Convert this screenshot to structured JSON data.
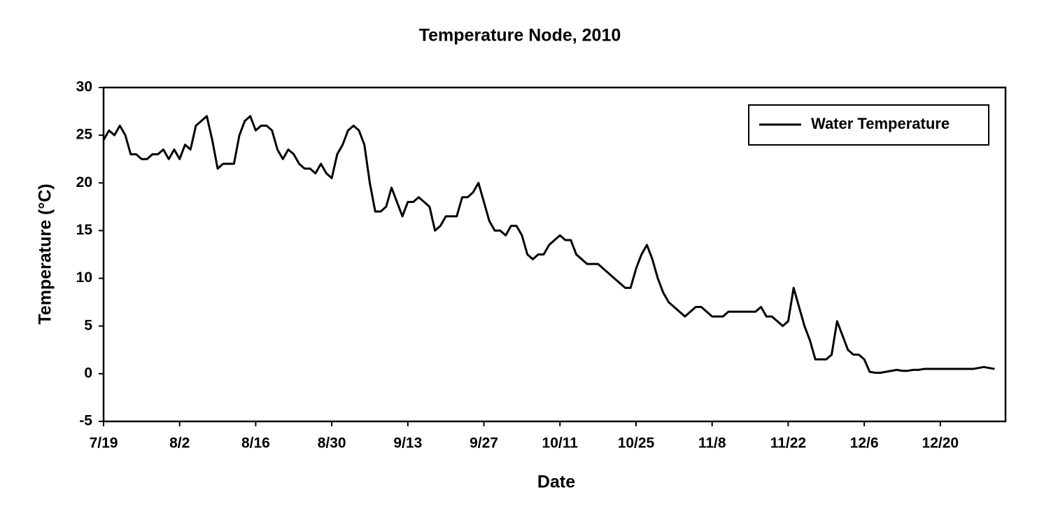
{
  "chart_data": {
    "type": "line",
    "title": "Temperature Node, 2010",
    "xlabel": "Date",
    "ylabel": "Temperature (°C)",
    "x": [
      "7/19",
      "7/20",
      "7/21",
      "7/22",
      "7/23",
      "7/24",
      "7/25",
      "7/26",
      "7/27",
      "7/28",
      "7/29",
      "7/30",
      "7/31",
      "8/1",
      "8/2",
      "8/3",
      "8/4",
      "8/5",
      "8/6",
      "8/7",
      "8/8",
      "8/9",
      "8/10",
      "8/11",
      "8/12",
      "8/13",
      "8/14",
      "8/15",
      "8/16",
      "8/17",
      "8/18",
      "8/19",
      "8/20",
      "8/21",
      "8/22",
      "8/23",
      "8/24",
      "8/25",
      "8/26",
      "8/27",
      "8/28",
      "8/29",
      "8/30",
      "8/31",
      "9/1",
      "9/2",
      "9/3",
      "9/4",
      "9/5",
      "9/6",
      "9/7",
      "9/8",
      "9/9",
      "9/10",
      "9/11",
      "9/12",
      "9/13",
      "9/14",
      "9/15",
      "9/16",
      "9/17",
      "9/18",
      "9/19",
      "9/20",
      "9/21",
      "9/22",
      "9/23",
      "9/24",
      "9/25",
      "9/26",
      "9/27",
      "9/28",
      "9/29",
      "9/30",
      "10/1",
      "10/2",
      "10/3",
      "10/4",
      "10/5",
      "10/6",
      "10/7",
      "10/8",
      "10/9",
      "10/10",
      "10/11",
      "10/12",
      "10/13",
      "10/14",
      "10/15",
      "10/16",
      "10/17",
      "10/18",
      "10/19",
      "10/20",
      "10/21",
      "10/22",
      "10/23",
      "10/24",
      "10/25",
      "10/26",
      "10/27",
      "10/28",
      "10/29",
      "10/30",
      "10/31",
      "11/1",
      "11/2",
      "11/3",
      "11/4",
      "11/5",
      "11/6",
      "11/7",
      "11/8",
      "11/9",
      "11/10",
      "11/11",
      "11/12",
      "11/13",
      "11/14",
      "11/15",
      "11/16",
      "11/17",
      "11/18",
      "11/19",
      "11/20",
      "11/21",
      "11/22",
      "11/23",
      "11/24",
      "11/25",
      "11/26",
      "11/27",
      "11/28",
      "11/29",
      "11/30",
      "12/1",
      "12/2",
      "12/3",
      "12/4",
      "12/5",
      "12/6",
      "12/7",
      "12/8",
      "12/9",
      "12/10",
      "12/11",
      "12/12",
      "12/13",
      "12/14",
      "12/15",
      "12/16",
      "12/17",
      "12/18",
      "12/19",
      "12/20",
      "12/21",
      "12/22",
      "12/23",
      "12/24",
      "12/25",
      "12/26",
      "12/27",
      "12/28",
      "12/29",
      "12/30"
    ],
    "series": [
      {
        "name": "Water Temperature",
        "color": "#000000",
        "values": [
          24.5,
          25.5,
          25,
          26,
          25,
          23,
          23,
          22.5,
          22.5,
          23,
          23,
          23.5,
          22.5,
          23.5,
          22.5,
          24,
          23.5,
          26,
          26.5,
          27,
          24.5,
          21.5,
          22,
          22,
          22,
          25,
          26.5,
          27,
          25.5,
          26,
          26,
          25.5,
          23.5,
          22.5,
          23.5,
          23,
          22,
          21.5,
          21.5,
          21,
          22,
          21,
          20.5,
          23,
          24,
          25.5,
          26,
          25.5,
          24,
          20,
          17,
          17,
          17.5,
          19.5,
          18,
          16.5,
          18,
          18,
          18.5,
          18,
          17.5,
          15,
          15.5,
          16.5,
          16.5,
          16.5,
          18.5,
          18.5,
          19,
          20,
          18,
          16,
          15,
          15,
          14.5,
          15.5,
          15.5,
          14.5,
          12.5,
          12,
          12.5,
          12.5,
          13.5,
          14,
          14.5,
          14,
          14,
          12.5,
          12,
          11.5,
          11.5,
          11.5,
          11,
          10.5,
          10,
          9.5,
          9,
          9,
          11,
          12.5,
          13.5,
          12,
          10,
          8.5,
          7.5,
          7,
          6.5,
          6,
          6.5,
          7,
          7,
          6.5,
          6,
          6,
          6,
          6.5,
          6.5,
          6.5,
          6.5,
          6.5,
          6.5,
          7,
          6,
          6,
          5.5,
          5,
          5.5,
          9,
          7,
          5,
          3.5,
          1.5,
          1.5,
          1.5,
          2,
          5.5,
          4,
          2.5,
          2,
          2,
          1.5,
          0.2,
          0.1,
          0.1,
          0.2,
          0.3,
          0.4,
          0.3,
          0.3,
          0.4,
          0.4,
          0.5,
          0.5,
          0.5,
          0.5,
          0.5,
          0.5,
          0.5,
          0.5,
          0.5,
          0.5,
          0.6,
          0.7,
          0.6,
          0.5
        ]
      }
    ],
    "xlim": [
      "7/19",
      "1/1"
    ],
    "xticks": [
      "7/19",
      "8/2",
      "8/16",
      "8/30",
      "9/13",
      "9/27",
      "10/11",
      "10/25",
      "11/8",
      "11/22",
      "12/6",
      "12/20"
    ],
    "ylim": [
      -5,
      30
    ],
    "yticks": [
      -5,
      0,
      5,
      10,
      15,
      20,
      25,
      30
    ],
    "grid": false,
    "legend": "upper right"
  }
}
